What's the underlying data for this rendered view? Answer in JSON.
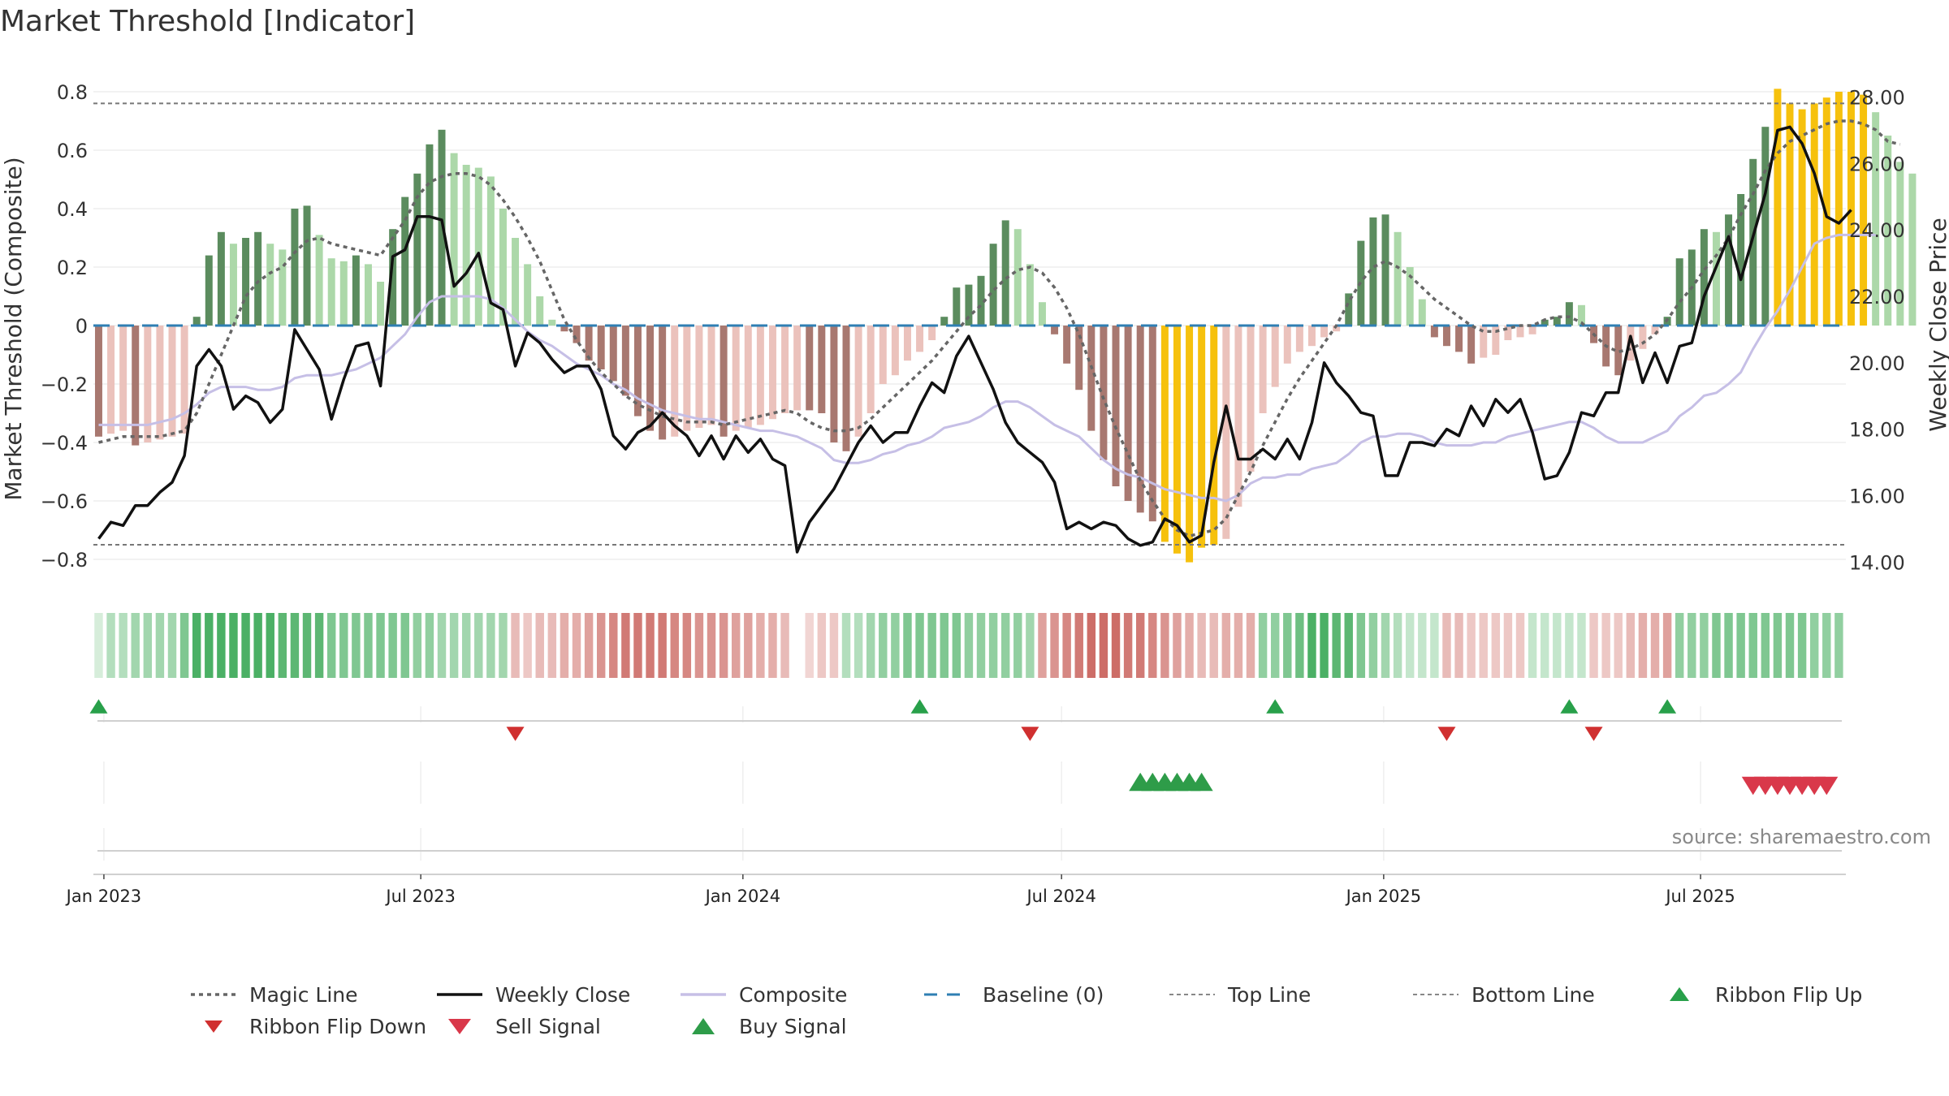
{
  "chart_data": {
    "type": "bar",
    "title": "Market Threshold [Indicator]",
    "ylabel": "Market Threshold (Composite)",
    "y2label": "Weekly Close Price",
    "ylim": [
      -0.9,
      0.85
    ],
    "y2lim": [
      13.2,
      28.6
    ],
    "yticks": [
      0.8,
      0.6,
      0.4,
      0.2,
      0,
      -0.2,
      -0.4,
      -0.6,
      -0.8
    ],
    "ytick_labels": [
      "0.8",
      "0.6",
      "0.4",
      "0.2",
      "0",
      "−0.2",
      "−0.4",
      "−0.6",
      "−0.8"
    ],
    "y2ticks": [
      28,
      26,
      24,
      22,
      20,
      18,
      16,
      14
    ],
    "y2tick_labels": [
      "28.00",
      "26.00",
      "24.00",
      "22.00",
      "20.00",
      "18.00",
      "16.00",
      "14.00"
    ],
    "x_start": "2022-12-26",
    "x_end": "2025-09-22",
    "xticks": [
      "2023-01-01",
      "2023-07-01",
      "2024-01-01",
      "2024-07-01",
      "2025-01-01",
      "2025-07-01"
    ],
    "xtick_labels": [
      "Jan 2023",
      "Jul 2023",
      "Jan 2024",
      "Jul 2024",
      "Jan 2025",
      "Jul 2025"
    ],
    "top_line": 0.76,
    "bottom_line": -0.75,
    "baseline": 0,
    "grid": true,
    "legend_position": "bottom",
    "source": "source: sharemaestro.com",
    "colors": {
      "strong_pos": "#5b8c5e",
      "weak_pos": "#acd8a9",
      "strong_neg": "#a87870",
      "weak_neg": "#ebc2bc",
      "extreme": "#f6c10d",
      "weekly_close": "#111111",
      "composite": "#c6bfe6",
      "magic_line": "#666666",
      "baseline": "#2f7fb3",
      "ribbon_up": "#28a04a",
      "ribbon_down": "#d03030",
      "sell": "#d9384a",
      "buy": "#2e9c49"
    },
    "composite_bars": [
      -0.38,
      -0.37,
      -0.36,
      -0.41,
      -0.4,
      -0.39,
      -0.38,
      -0.37,
      0.03,
      0.24,
      0.32,
      0.28,
      0.3,
      0.32,
      0.28,
      0.26,
      0.4,
      0.41,
      0.31,
      0.23,
      0.22,
      0.24,
      0.21,
      0.15,
      0.33,
      0.44,
      0.52,
      0.62,
      0.67,
      0.59,
      0.55,
      0.54,
      0.51,
      0.4,
      0.3,
      0.21,
      0.1,
      0.02,
      -0.02,
      -0.06,
      -0.12,
      -0.15,
      -0.19,
      -0.24,
      -0.31,
      -0.36,
      -0.39,
      -0.38,
      -0.36,
      -0.35,
      -0.34,
      -0.38,
      -0.36,
      -0.35,
      -0.34,
      -0.32,
      -0.3,
      -0.29,
      -0.29,
      -0.3,
      -0.4,
      -0.43,
      -0.38,
      -0.3,
      -0.2,
      -0.17,
      -0.12,
      -0.09,
      -0.05,
      0.03,
      0.13,
      0.14,
      0.17,
      0.28,
      0.36,
      0.33,
      0.21,
      0.08,
      -0.03,
      -0.13,
      -0.22,
      -0.36,
      -0.46,
      -0.55,
      -0.6,
      -0.64,
      -0.67,
      -0.74,
      -0.78,
      -0.81,
      -0.76,
      -0.75,
      -0.73,
      -0.62,
      -0.5,
      -0.3,
      -0.21,
      -0.13,
      -0.09,
      -0.07,
      -0.04,
      -0.02,
      0.11,
      0.29,
      0.37,
      0.38,
      0.32,
      0.2,
      0.09,
      -0.04,
      -0.07,
      -0.09,
      -0.13,
      -0.11,
      -0.1,
      -0.05,
      -0.04,
      -0.03,
      0.02,
      0.03,
      0.08,
      0.07,
      -0.06,
      -0.14,
      -0.17,
      -0.12,
      -0.08,
      -0.03,
      0.03,
      0.23,
      0.26,
      0.33,
      0.32,
      0.38,
      0.45,
      0.57,
      0.68,
      0.81,
      0.76,
      0.74,
      0.76,
      0.78,
      0.8,
      0.8,
      0.79,
      0.73,
      0.65,
      0.56,
      0.52
    ],
    "weekly_close": [
      14.7,
      15.2,
      15.1,
      15.7,
      15.7,
      16.1,
      16.4,
      17.2,
      19.9,
      20.4,
      19.9,
      18.6,
      19.0,
      18.8,
      18.2,
      18.6,
      21.0,
      20.4,
      19.8,
      18.3,
      19.5,
      20.5,
      20.6,
      19.3,
      23.2,
      23.4,
      24.4,
      24.4,
      24.3,
      22.3,
      22.7,
      23.3,
      21.8,
      21.6,
      19.9,
      20.9,
      20.6,
      20.1,
      19.7,
      19.9,
      19.9,
      19.2,
      17.8,
      17.4,
      17.9,
      18.1,
      18.5,
      18.1,
      17.8,
      17.2,
      17.8,
      17.1,
      17.8,
      17.3,
      17.7,
      17.1,
      16.9,
      14.3,
      15.2,
      15.7,
      16.2,
      16.9,
      17.6,
      18.1,
      17.6,
      17.9,
      17.9,
      18.7,
      19.4,
      19.1,
      20.2,
      20.8,
      20.0,
      19.2,
      18.2,
      17.6,
      17.3,
      17.0,
      16.4,
      15.0,
      15.2,
      15.0,
      15.2,
      15.1,
      14.7,
      14.5,
      14.6,
      15.3,
      15.1,
      14.6,
      14.8,
      17.0,
      18.7,
      17.1,
      17.1,
      17.4,
      17.1,
      17.7,
      17.1,
      18.2,
      20.0,
      19.4,
      19.0,
      18.5,
      18.4,
      16.6,
      16.6,
      17.6,
      17.6,
      17.5,
      18.0,
      17.8,
      18.7,
      18.1,
      18.9,
      18.5,
      18.9,
      17.9,
      16.5,
      16.6,
      17.3,
      18.5,
      18.4,
      19.1,
      19.1,
      20.8,
      19.4,
      20.3,
      19.4,
      20.5,
      20.6,
      22.0,
      22.9,
      23.8,
      22.5,
      23.8,
      25.1,
      27.0,
      27.1,
      26.6,
      25.7,
      24.4,
      24.2,
      24.6
    ],
    "composite_line": [
      -0.34,
      -0.34,
      -0.34,
      -0.34,
      -0.34,
      -0.33,
      -0.32,
      -0.3,
      -0.27,
      -0.23,
      -0.21,
      -0.21,
      -0.21,
      -0.22,
      -0.22,
      -0.21,
      -0.18,
      -0.17,
      -0.17,
      -0.17,
      -0.16,
      -0.15,
      -0.13,
      -0.11,
      -0.07,
      -0.03,
      0.03,
      0.08,
      0.1,
      0.1,
      0.1,
      0.1,
      0.09,
      0.06,
      0.02,
      -0.02,
      -0.05,
      -0.07,
      -0.1,
      -0.13,
      -0.15,
      -0.17,
      -0.2,
      -0.22,
      -0.25,
      -0.27,
      -0.29,
      -0.3,
      -0.31,
      -0.32,
      -0.32,
      -0.33,
      -0.34,
      -0.35,
      -0.36,
      -0.36,
      -0.37,
      -0.38,
      -0.4,
      -0.42,
      -0.46,
      -0.47,
      -0.47,
      -0.46,
      -0.44,
      -0.43,
      -0.41,
      -0.4,
      -0.38,
      -0.35,
      -0.34,
      -0.33,
      -0.31,
      -0.28,
      -0.26,
      -0.26,
      -0.28,
      -0.31,
      -0.34,
      -0.36,
      -0.38,
      -0.42,
      -0.46,
      -0.49,
      -0.51,
      -0.52,
      -0.54,
      -0.56,
      -0.57,
      -0.58,
      -0.59,
      -0.59,
      -0.6,
      -0.58,
      -0.54,
      -0.52,
      -0.52,
      -0.51,
      -0.51,
      -0.49,
      -0.48,
      -0.47,
      -0.44,
      -0.4,
      -0.38,
      -0.38,
      -0.37,
      -0.37,
      -0.38,
      -0.4,
      -0.41,
      -0.41,
      -0.41,
      -0.4,
      -0.4,
      -0.38,
      -0.37,
      -0.36,
      -0.35,
      -0.34,
      -0.33,
      -0.33,
      -0.35,
      -0.38,
      -0.4,
      -0.4,
      -0.4,
      -0.38,
      -0.36,
      -0.31,
      -0.28,
      -0.24,
      -0.23,
      -0.2,
      -0.16,
      -0.08,
      -0.01,
      0.05,
      0.12,
      0.2,
      0.28,
      0.3,
      0.31,
      0.31,
      0.31,
      0.31
    ],
    "magic_line": [
      -0.4,
      -0.39,
      -0.38,
      -0.38,
      -0.38,
      -0.38,
      -0.37,
      -0.36,
      -0.3,
      -0.2,
      -0.1,
      0.0,
      0.1,
      0.15,
      0.18,
      0.2,
      0.25,
      0.29,
      0.3,
      0.28,
      0.27,
      0.26,
      0.25,
      0.24,
      0.3,
      0.36,
      0.44,
      0.49,
      0.51,
      0.52,
      0.52,
      0.51,
      0.48,
      0.43,
      0.37,
      0.3,
      0.22,
      0.12,
      0.02,
      -0.05,
      -0.11,
      -0.16,
      -0.2,
      -0.24,
      -0.27,
      -0.29,
      -0.31,
      -0.32,
      -0.33,
      -0.33,
      -0.33,
      -0.34,
      -0.33,
      -0.32,
      -0.31,
      -0.3,
      -0.29,
      -0.3,
      -0.33,
      -0.35,
      -0.36,
      -0.36,
      -0.35,
      -0.32,
      -0.28,
      -0.24,
      -0.2,
      -0.16,
      -0.12,
      -0.07,
      -0.02,
      0.03,
      0.07,
      0.12,
      0.16,
      0.19,
      0.2,
      0.18,
      0.13,
      0.06,
      -0.03,
      -0.14,
      -0.25,
      -0.35,
      -0.44,
      -0.53,
      -0.6,
      -0.66,
      -0.7,
      -0.72,
      -0.71,
      -0.7,
      -0.66,
      -0.58,
      -0.5,
      -0.41,
      -0.33,
      -0.25,
      -0.18,
      -0.12,
      -0.06,
      0.0,
      0.08,
      0.15,
      0.2,
      0.22,
      0.2,
      0.17,
      0.13,
      0.09,
      0.06,
      0.03,
      0.0,
      -0.02,
      -0.02,
      -0.01,
      0.0,
      0.0,
      0.02,
      0.03,
      0.03,
      0.01,
      -0.03,
      -0.07,
      -0.09,
      -0.08,
      -0.06,
      -0.03,
      0.02,
      0.08,
      0.13,
      0.19,
      0.24,
      0.3,
      0.38,
      0.45,
      0.53,
      0.59,
      0.63,
      0.65,
      0.67,
      0.69,
      0.7,
      0.7,
      0.69,
      0.67,
      0.63,
      0.62
    ],
    "ribbon_values": [
      0.1,
      0.3,
      0.3,
      0.4,
      0.4,
      0.4,
      0.4,
      0.6,
      0.9,
      0.9,
      0.9,
      0.9,
      0.9,
      0.9,
      0.9,
      0.8,
      0.8,
      0.8,
      0.8,
      0.6,
      0.6,
      0.6,
      0.6,
      0.6,
      0.6,
      0.6,
      0.5,
      0.5,
      0.4,
      0.4,
      0.4,
      0.4,
      0.4,
      0.4,
      0.3,
      0.2,
      0.3,
      0.3,
      0.4,
      0.4,
      0.5,
      0.6,
      0.7,
      0.8,
      0.8,
      0.8,
      0.8,
      0.7,
      0.7,
      0.6,
      0.6,
      0.6,
      0.5,
      0.5,
      0.4,
      0.4,
      0.3,
      0.2,
      0.1,
      0.2,
      0.2,
      0.3,
      0.3,
      0.4,
      0.5,
      0.5,
      0.6,
      0.6,
      0.6,
      0.6,
      0.6,
      0.5,
      0.5,
      0.5,
      0.5,
      0.5,
      0.4,
      0.5,
      0.6,
      0.7,
      0.8,
      0.9,
      0.9,
      0.9,
      0.8,
      0.8,
      0.7,
      0.6,
      0.5,
      0.4,
      0.3,
      0.3,
      0.4,
      0.4,
      0.4,
      0.5,
      0.5,
      0.6,
      0.7,
      0.9,
      0.9,
      0.8,
      0.8,
      0.6,
      0.5,
      0.4,
      0.3,
      0.2,
      0.2,
      0.2,
      0.3,
      0.3,
      0.2,
      0.2,
      0.2,
      0.2,
      0.2,
      0.2,
      0.2,
      0.2,
      0.2,
      0.2,
      0.2,
      0.2,
      0.2,
      0.3,
      0.4,
      0.4,
      0.5,
      0.5,
      0.5,
      0.5,
      0.6,
      0.6,
      0.6,
      0.6,
      0.6,
      0.6,
      0.6,
      0.6,
      0.5,
      0.5,
      0.5
    ],
    "ribbon_signs": [
      1,
      1,
      1,
      1,
      1,
      1,
      1,
      1,
      1,
      1,
      1,
      1,
      1,
      1,
      1,
      1,
      1,
      1,
      1,
      1,
      1,
      1,
      1,
      1,
      1,
      1,
      1,
      1,
      1,
      1,
      1,
      1,
      1,
      1,
      -1,
      -1,
      -1,
      -1,
      -1,
      -1,
      -1,
      -1,
      -1,
      -1,
      -1,
      -1,
      -1,
      -1,
      -1,
      -1,
      -1,
      -1,
      -1,
      -1,
      -1,
      -1,
      -1,
      0,
      -1,
      -1,
      -1,
      1,
      1,
      1,
      1,
      1,
      1,
      1,
      1,
      1,
      1,
      1,
      1,
      1,
      1,
      1,
      1,
      -1,
      -1,
      -1,
      -1,
      -1,
      -1,
      -1,
      -1,
      -1,
      -1,
      -1,
      -1,
      -1,
      -1,
      -1,
      -1,
      -1,
      -1,
      1,
      1,
      1,
      1,
      1,
      1,
      1,
      1,
      1,
      1,
      1,
      1,
      1,
      1,
      1,
      -1,
      -1,
      -1,
      -1,
      -1,
      -1,
      -1,
      1,
      1,
      1,
      1,
      1,
      -1,
      -1,
      -1,
      -1,
      -1,
      -1,
      -1,
      1,
      1,
      1,
      1,
      1,
      1,
      1,
      1,
      1,
      1,
      1,
      1,
      1,
      1,
      1,
      1,
      1,
      1,
      1,
      1,
      1,
      1
    ],
    "ribbon_flip_up": [
      "2022-12-29",
      "2024-04-11",
      "2024-10-31",
      "2025-04-17",
      "2025-06-12"
    ],
    "ribbon_flip_down": [
      "2023-08-24",
      "2024-06-13",
      "2025-02-06",
      "2025-05-01"
    ],
    "buy_signals": [
      "2024-08-15",
      "2024-08-22",
      "2024-08-29",
      "2024-09-05",
      "2024-09-12",
      "2024-09-19"
    ],
    "sell_signals": [
      "2025-07-31",
      "2025-08-07",
      "2025-08-14",
      "2025-08-21",
      "2025-08-28",
      "2025-09-04",
      "2025-09-11"
    ]
  },
  "legend": [
    {
      "key": "magic",
      "label": "Magic Line"
    },
    {
      "key": "close",
      "label": "Weekly Close"
    },
    {
      "key": "composite",
      "label": "Composite"
    },
    {
      "key": "baseline",
      "label": "Baseline (0)"
    },
    {
      "key": "top",
      "label": "Top Line"
    },
    {
      "key": "bottom",
      "label": "Bottom Line"
    },
    {
      "key": "flip_up",
      "label": "Ribbon Flip Up"
    },
    {
      "key": "flip_down",
      "label": "Ribbon Flip Down"
    },
    {
      "key": "sell",
      "label": "Sell Signal"
    },
    {
      "key": "buy",
      "label": "Buy Signal"
    }
  ]
}
